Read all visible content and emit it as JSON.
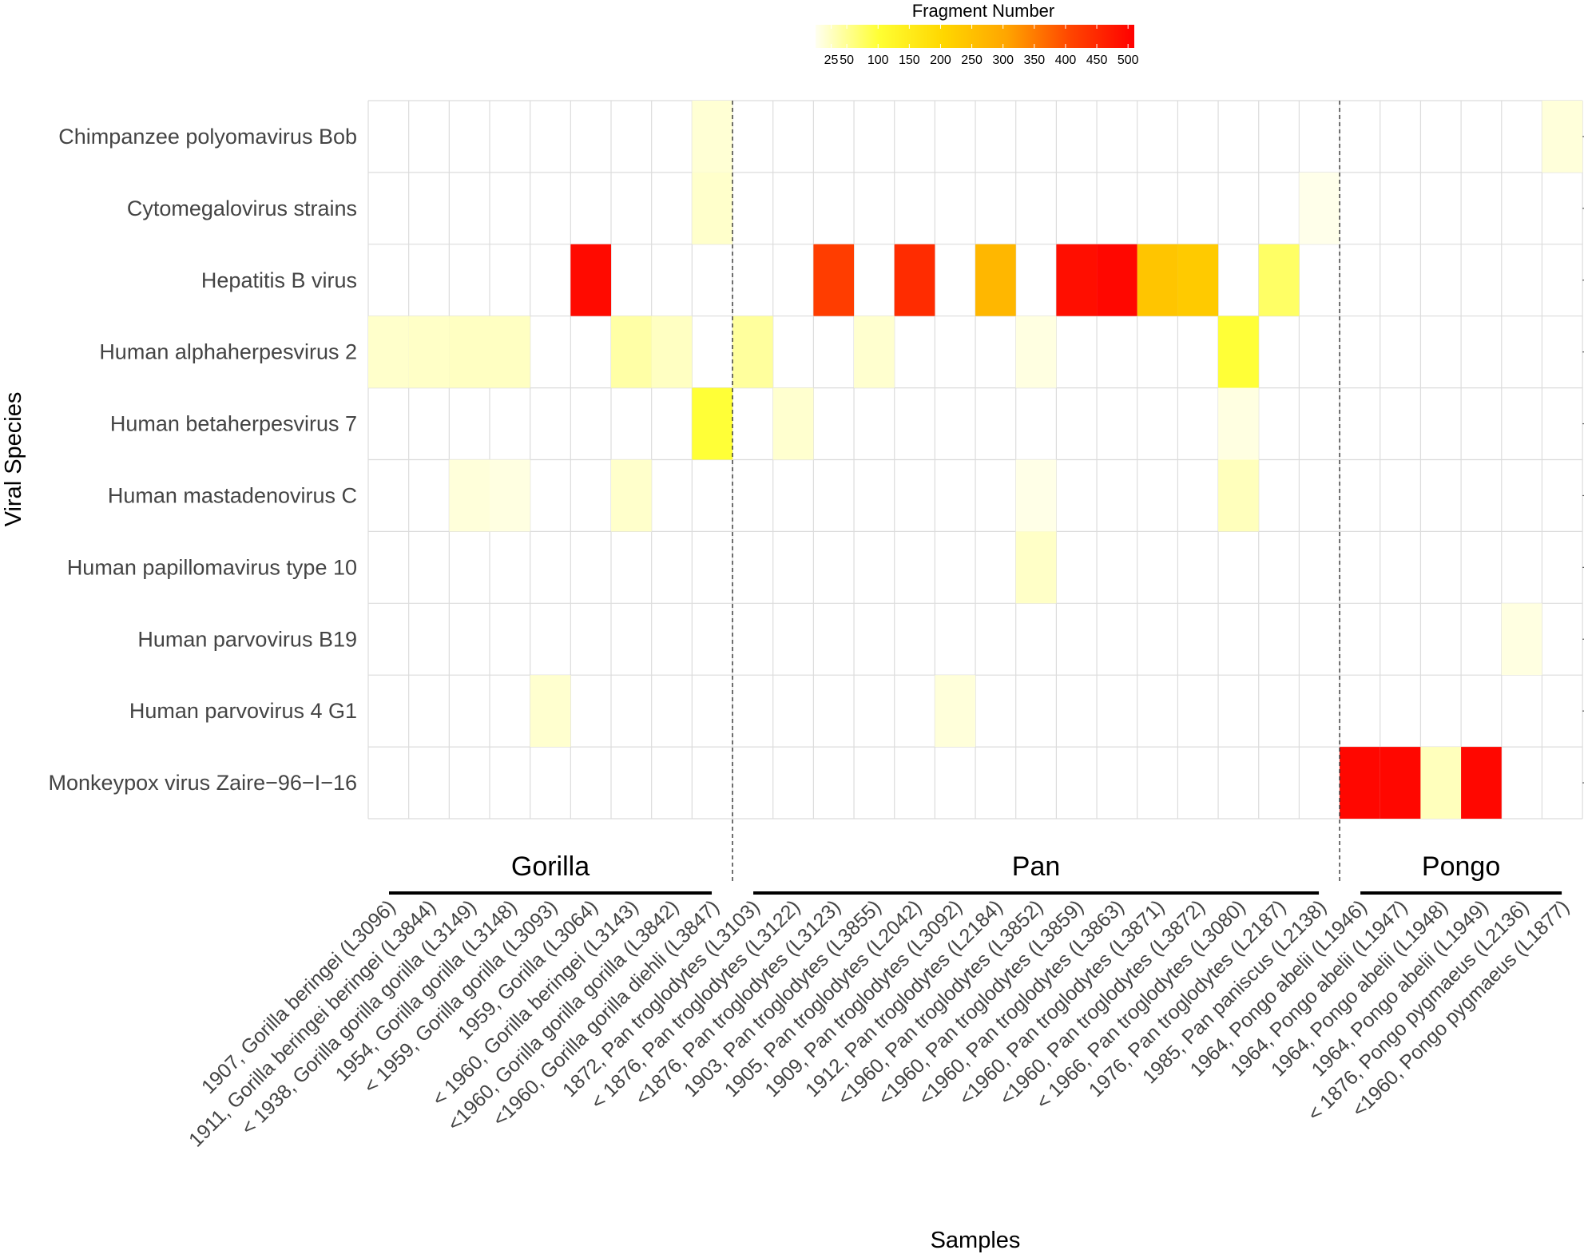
{
  "chart_data": {
    "type": "heatmap",
    "xlabel": "Samples",
    "ylabel": "Viral Species",
    "legend": {
      "title": "Fragment Number",
      "ticks": [
        25,
        50,
        100,
        150,
        200,
        250,
        300,
        350,
        400,
        450,
        500
      ],
      "range": [
        0,
        510
      ],
      "colors": [
        "#FFFFF0",
        "#FFFF33",
        "#FFD700",
        "#FFA500",
        "#FF4500",
        "#FF0000"
      ],
      "position": "top"
    },
    "species": [
      "Chimpanzee polyomavirus Bob",
      "Cytomegalovirus strains",
      "Hepatitis B virus",
      "Human alphaherpesvirus 2",
      "Human betaherpesvirus 7",
      "Human mastadenovirus C",
      "Human papillomavirus type 10",
      "Human parvovirus B19",
      "Human parvovirus 4 G1",
      "Monkeypox virus Zaire−96−I−16"
    ],
    "samples": [
      "1907, Gorilla beringei (L3096)",
      "1911, Gorilla beringei beringei (L3844)",
      "< 1938, Gorilla gorilla gorilla (L3149)",
      "1954, Gorilla gorilla (L3148)",
      "< 1959, Gorilla gorilla (L3093)",
      "1959, Gorilla (L3064)",
      "< 1960, Gorilla beringei (L3143)",
      "<1960, Gorilla gorilla gorilla (L3842)",
      "<1960, Gorilla gorilla diehli (L3847)",
      "1872, Pan troglodytes (L3103)",
      "< 1876, Pan troglodytes (L3122)",
      "<1876, Pan troglodytes (L3123)",
      "1903, Pan troglodytes (L3855)",
      "1905, Pan troglodytes (L2042)",
      "1909, Pan troglodytes (L3092)",
      "1912, Pan troglodytes (L2184)",
      "<1960, Pan troglodytes (L3852)",
      "<1960, Pan troglodytes (L3859)",
      "<1960, Pan troglodytes (L3863)",
      "<1960, Pan troglodytes (L3871)",
      "<1960, Pan troglodytes (L3872)",
      "< 1966, Pan troglodytes (L3080)",
      "1976, Pan troglodytes (L2187)",
      "1985, Pan paniscus (L2138)",
      "1964, Pongo abelii (L1946)",
      "1964, Pongo abelii (L1947)",
      "1964, Pongo abelii (L1948)",
      "1964, Pongo abelii (L1949)",
      "< 1876, Pongo pygmaeus (L2136)",
      "<1960, Pongo pygmaeus (L1877)"
    ],
    "groups": [
      {
        "name": "Gorilla",
        "start": 0,
        "end": 8
      },
      {
        "name": "Pan",
        "start": 9,
        "end": 23
      },
      {
        "name": "Pongo",
        "start": 24,
        "end": 29
      }
    ],
    "cells": [
      {
        "species": 0,
        "sample": 8,
        "value": 15
      },
      {
        "species": 0,
        "sample": 29,
        "value": 12
      },
      {
        "species": 1,
        "sample": 8,
        "value": 20
      },
      {
        "species": 1,
        "sample": 23,
        "value": 3
      },
      {
        "species": 2,
        "sample": 5,
        "value": 495
      },
      {
        "species": 2,
        "sample": 11,
        "value": 420
      },
      {
        "species": 2,
        "sample": 13,
        "value": 445
      },
      {
        "species": 2,
        "sample": 15,
        "value": 270
      },
      {
        "species": 2,
        "sample": 17,
        "value": 490
      },
      {
        "species": 2,
        "sample": 18,
        "value": 500
      },
      {
        "species": 2,
        "sample": 19,
        "value": 240
      },
      {
        "species": 2,
        "sample": 20,
        "value": 230
      },
      {
        "species": 2,
        "sample": 22,
        "value": 75
      },
      {
        "species": 3,
        "sample": 0,
        "value": 20
      },
      {
        "species": 3,
        "sample": 1,
        "value": 22
      },
      {
        "species": 3,
        "sample": 2,
        "value": 25
      },
      {
        "species": 3,
        "sample": 3,
        "value": 25
      },
      {
        "species": 3,
        "sample": 6,
        "value": 40
      },
      {
        "species": 3,
        "sample": 7,
        "value": 25
      },
      {
        "species": 3,
        "sample": 9,
        "value": 45
      },
      {
        "species": 3,
        "sample": 12,
        "value": 18
      },
      {
        "species": 3,
        "sample": 16,
        "value": 8
      },
      {
        "species": 3,
        "sample": 21,
        "value": 100
      },
      {
        "species": 4,
        "sample": 8,
        "value": 100
      },
      {
        "species": 4,
        "sample": 10,
        "value": 18
      },
      {
        "species": 4,
        "sample": 21,
        "value": 8
      },
      {
        "species": 5,
        "sample": 2,
        "value": 12
      },
      {
        "species": 5,
        "sample": 3,
        "value": 8
      },
      {
        "species": 5,
        "sample": 6,
        "value": 20
      },
      {
        "species": 5,
        "sample": 16,
        "value": 5
      },
      {
        "species": 5,
        "sample": 21,
        "value": 28
      },
      {
        "species": 6,
        "sample": 16,
        "value": 22
      },
      {
        "species": 7,
        "sample": 28,
        "value": 8
      },
      {
        "species": 8,
        "sample": 4,
        "value": 18
      },
      {
        "species": 8,
        "sample": 14,
        "value": 12
      },
      {
        "species": 9,
        "sample": 24,
        "value": 500
      },
      {
        "species": 9,
        "sample": 25,
        "value": 500
      },
      {
        "species": 9,
        "sample": 26,
        "value": 28
      },
      {
        "species": 9,
        "sample": 27,
        "value": 500
      }
    ]
  }
}
